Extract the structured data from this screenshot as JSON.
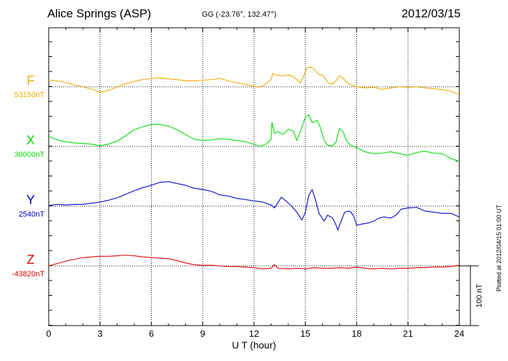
{
  "header": {
    "station": "Alice Springs (ASP)",
    "coords": "GG (-23.76°, 132.47°)",
    "date": "2012/03/15"
  },
  "footer_note": "Plotted at 2012/04/15 01:00 UT",
  "chart_data": {
    "type": "line",
    "title": "Alice Springs (ASP)",
    "xlabel": "U T (hour)",
    "ylabel": "",
    "xlim": [
      0,
      24
    ],
    "x_ticks": [
      "0",
      "3",
      "6",
      "9",
      "12",
      "15",
      "18",
      "21",
      "24"
    ],
    "grid": true,
    "scale_bar": "100 nT",
    "series": [
      {
        "name": "F",
        "baseline_label": "53150nT",
        "color": "#f0a800",
        "values": [
          [
            0,
            11
          ],
          [
            0.5,
            10
          ],
          [
            1,
            7
          ],
          [
            1.5,
            3
          ],
          [
            2,
            0
          ],
          [
            2.5,
            -4
          ],
          [
            3,
            -9
          ],
          [
            3.5,
            -6
          ],
          [
            4,
            0
          ],
          [
            4.5,
            5
          ],
          [
            5,
            9
          ],
          [
            5.5,
            12
          ],
          [
            6,
            14
          ],
          [
            6.5,
            15
          ],
          [
            7,
            13
          ],
          [
            7.5,
            12
          ],
          [
            8,
            10
          ],
          [
            8.5,
            10
          ],
          [
            9,
            11
          ],
          [
            9.5,
            12
          ],
          [
            10,
            14
          ],
          [
            10.5,
            10
          ],
          [
            11,
            7
          ],
          [
            11.5,
            4
          ],
          [
            12,
            1
          ],
          [
            12.3,
            -1
          ],
          [
            12.6,
            3
          ],
          [
            13,
            12
          ],
          [
            13.1,
            22
          ],
          [
            13.3,
            20
          ],
          [
            13.6,
            18
          ],
          [
            14,
            20
          ],
          [
            14.3,
            17
          ],
          [
            14.5,
            12
          ],
          [
            14.7,
            6
          ],
          [
            14.9,
            18
          ],
          [
            15.1,
            32
          ],
          [
            15.3,
            33
          ],
          [
            15.5,
            30
          ],
          [
            15.8,
            20
          ],
          [
            16,
            20
          ],
          [
            16.2,
            12
          ],
          [
            16.4,
            5
          ],
          [
            16.6,
            5
          ],
          [
            16.8,
            10
          ],
          [
            17,
            18
          ],
          [
            17.2,
            15
          ],
          [
            17.4,
            8
          ],
          [
            17.6,
            4
          ],
          [
            18,
            0
          ],
          [
            18.5,
            -2
          ],
          [
            19,
            -1
          ],
          [
            19.5,
            -4
          ],
          [
            20,
            -2
          ],
          [
            20.5,
            0
          ],
          [
            21,
            -1
          ],
          [
            21.5,
            0
          ],
          [
            22,
            -2
          ],
          [
            22.5,
            -3
          ],
          [
            23,
            -5
          ],
          [
            23.5,
            -7
          ],
          [
            24,
            -13
          ]
        ]
      },
      {
        "name": "X",
        "baseline_label": "30000nT",
        "color": "#00dc00",
        "values": [
          [
            0,
            17
          ],
          [
            0.5,
            11
          ],
          [
            1,
            8
          ],
          [
            1.5,
            6
          ],
          [
            2,
            5
          ],
          [
            2.5,
            4
          ],
          [
            3,
            1
          ],
          [
            3.5,
            4
          ],
          [
            4,
            9
          ],
          [
            4.5,
            18
          ],
          [
            5,
            28
          ],
          [
            5.5,
            33
          ],
          [
            6,
            37
          ],
          [
            6.5,
            37
          ],
          [
            7,
            34
          ],
          [
            7.5,
            28
          ],
          [
            8,
            20
          ],
          [
            8.5,
            12
          ],
          [
            9,
            10
          ],
          [
            9.5,
            11
          ],
          [
            10,
            13
          ],
          [
            10.5,
            12
          ],
          [
            11,
            10
          ],
          [
            11.5,
            8
          ],
          [
            12,
            4
          ],
          [
            12.3,
            0
          ],
          [
            12.7,
            4
          ],
          [
            13,
            12
          ],
          [
            13.05,
            40
          ],
          [
            13.2,
            22
          ],
          [
            13.4,
            25
          ],
          [
            13.7,
            20
          ],
          [
            14,
            29
          ],
          [
            14.3,
            26
          ],
          [
            14.5,
            10
          ],
          [
            14.7,
            24
          ],
          [
            15,
            49
          ],
          [
            15.2,
            53
          ],
          [
            15.4,
            40
          ],
          [
            15.7,
            44
          ],
          [
            15.9,
            30
          ],
          [
            16.1,
            10
          ],
          [
            16.3,
            2
          ],
          [
            16.6,
            1
          ],
          [
            16.8,
            8
          ],
          [
            17,
            30
          ],
          [
            17.2,
            25
          ],
          [
            17.4,
            10
          ],
          [
            17.6,
            3
          ],
          [
            18,
            -2
          ],
          [
            18.5,
            -9
          ],
          [
            19,
            -12
          ],
          [
            19.5,
            -11
          ],
          [
            20,
            -9
          ],
          [
            20.5,
            -12
          ],
          [
            21,
            -15
          ],
          [
            21.5,
            -10
          ],
          [
            22,
            -8
          ],
          [
            22.5,
            -11
          ],
          [
            23,
            -12
          ],
          [
            23.5,
            -20
          ],
          [
            24,
            -25
          ]
        ]
      },
      {
        "name": "Y",
        "baseline_label": "2540nT",
        "color": "#0000c8",
        "values": [
          [
            0,
            1
          ],
          [
            0.5,
            3
          ],
          [
            1,
            2
          ],
          [
            1.5,
            3
          ],
          [
            2,
            3
          ],
          [
            2.5,
            5
          ],
          [
            3,
            7
          ],
          [
            3.5,
            10
          ],
          [
            4,
            14
          ],
          [
            4.5,
            20
          ],
          [
            5,
            26
          ],
          [
            5.5,
            31
          ],
          [
            6,
            35
          ],
          [
            6.5,
            40
          ],
          [
            7,
            41
          ],
          [
            7.5,
            38
          ],
          [
            8,
            35
          ],
          [
            8.5,
            30
          ],
          [
            9,
            28
          ],
          [
            9.5,
            25
          ],
          [
            10,
            19
          ],
          [
            10.5,
            17
          ],
          [
            11,
            13
          ],
          [
            11.5,
            11
          ],
          [
            12,
            9
          ],
          [
            12.5,
            7
          ],
          [
            13,
            2
          ],
          [
            13.2,
            -3
          ],
          [
            13.6,
            15
          ],
          [
            13.9,
            8
          ],
          [
            14.2,
            0
          ],
          [
            14.5,
            -10
          ],
          [
            14.8,
            -23
          ],
          [
            15,
            -10
          ],
          [
            15.2,
            18
          ],
          [
            15.4,
            28
          ],
          [
            15.6,
            10
          ],
          [
            15.8,
            -12
          ],
          [
            16.1,
            -25
          ],
          [
            16.3,
            -15
          ],
          [
            16.6,
            -20
          ],
          [
            16.8,
            -32
          ],
          [
            16.9,
            -40
          ],
          [
            17,
            -32
          ],
          [
            17.3,
            -10
          ],
          [
            17.6,
            -8
          ],
          [
            17.8,
            -15
          ],
          [
            18,
            -32
          ],
          [
            18.3,
            -30
          ],
          [
            18.7,
            -28
          ],
          [
            19,
            -25
          ],
          [
            19.3,
            -20
          ],
          [
            19.6,
            -18
          ],
          [
            20,
            -20
          ],
          [
            20.3,
            -15
          ],
          [
            20.6,
            -5
          ],
          [
            21,
            -3
          ],
          [
            21.5,
            -2
          ],
          [
            22,
            -8
          ],
          [
            22.5,
            -10
          ],
          [
            23,
            -12
          ],
          [
            23.5,
            -12
          ],
          [
            24,
            -18
          ]
        ]
      },
      {
        "name": "Z",
        "baseline_label": "-43820nT",
        "color": "#dc0000",
        "values": [
          [
            0,
            0
          ],
          [
            0.5,
            4
          ],
          [
            1,
            8
          ],
          [
            1.5,
            11
          ],
          [
            2,
            14
          ],
          [
            2.5,
            15
          ],
          [
            3,
            16
          ],
          [
            3.5,
            16
          ],
          [
            4,
            17
          ],
          [
            4.5,
            18
          ],
          [
            5,
            17
          ],
          [
            5.5,
            15
          ],
          [
            6,
            14
          ],
          [
            6.5,
            13
          ],
          [
            7,
            12
          ],
          [
            7.5,
            9
          ],
          [
            8,
            5
          ],
          [
            8.5,
            2
          ],
          [
            9,
            1
          ],
          [
            9.5,
            1
          ],
          [
            10,
            0
          ],
          [
            10.5,
            -1
          ],
          [
            11,
            -1
          ],
          [
            11.5,
            -2
          ],
          [
            12,
            -3
          ],
          [
            12.5,
            -5
          ],
          [
            13,
            -4
          ],
          [
            13.2,
            2
          ],
          [
            13.4,
            -4
          ],
          [
            14,
            -5
          ],
          [
            14.5,
            -4
          ],
          [
            15,
            -5
          ],
          [
            15.5,
            -3
          ],
          [
            16,
            -4
          ],
          [
            16.5,
            -4
          ],
          [
            17,
            -3
          ],
          [
            17.5,
            -4
          ],
          [
            18,
            -2
          ],
          [
            18.5,
            -4
          ],
          [
            19,
            -5
          ],
          [
            19.5,
            -4
          ],
          [
            20,
            -5
          ],
          [
            20.5,
            -4
          ],
          [
            21,
            -4
          ],
          [
            21.5,
            -3
          ],
          [
            22,
            -3
          ],
          [
            22.5,
            -2
          ],
          [
            23,
            -2
          ],
          [
            23.5,
            -1
          ],
          [
            24,
            1
          ]
        ]
      }
    ]
  }
}
